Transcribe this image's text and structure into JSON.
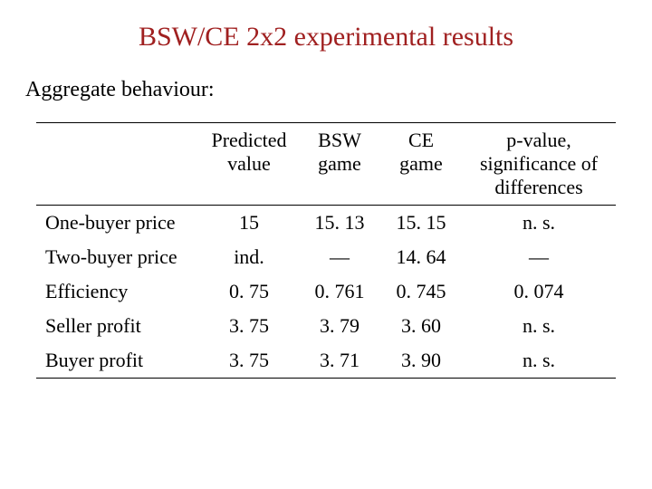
{
  "title": "BSW/CE 2x2 experimental results",
  "title_color": "#a02020",
  "subtitle": "Aggregate behaviour:",
  "columns": {
    "predicted": "Predicted value",
    "bsw": "BSW game",
    "ce": "CE game",
    "pval": "p-value, significance of differences"
  },
  "rows": [
    {
      "label": "One-buyer price",
      "predicted": "15",
      "bsw": "15. 13",
      "ce": "15. 15",
      "pval": "n. s."
    },
    {
      "label": "Two-buyer price",
      "predicted": "ind.",
      "bsw": "—",
      "ce": "14. 64",
      "pval": "—"
    },
    {
      "label": "Efficiency",
      "predicted": "0. 75",
      "bsw": "0. 761",
      "ce": "0. 745",
      "pval": "0. 074"
    },
    {
      "label": "Seller profit",
      "predicted": "3. 75",
      "bsw": "3. 79",
      "ce": "3. 60",
      "pval": "n. s."
    },
    {
      "label": "Buyer profit",
      "predicted": "3. 75",
      "bsw": "3. 71",
      "ce": "3. 90",
      "pval": "n. s."
    }
  ]
}
